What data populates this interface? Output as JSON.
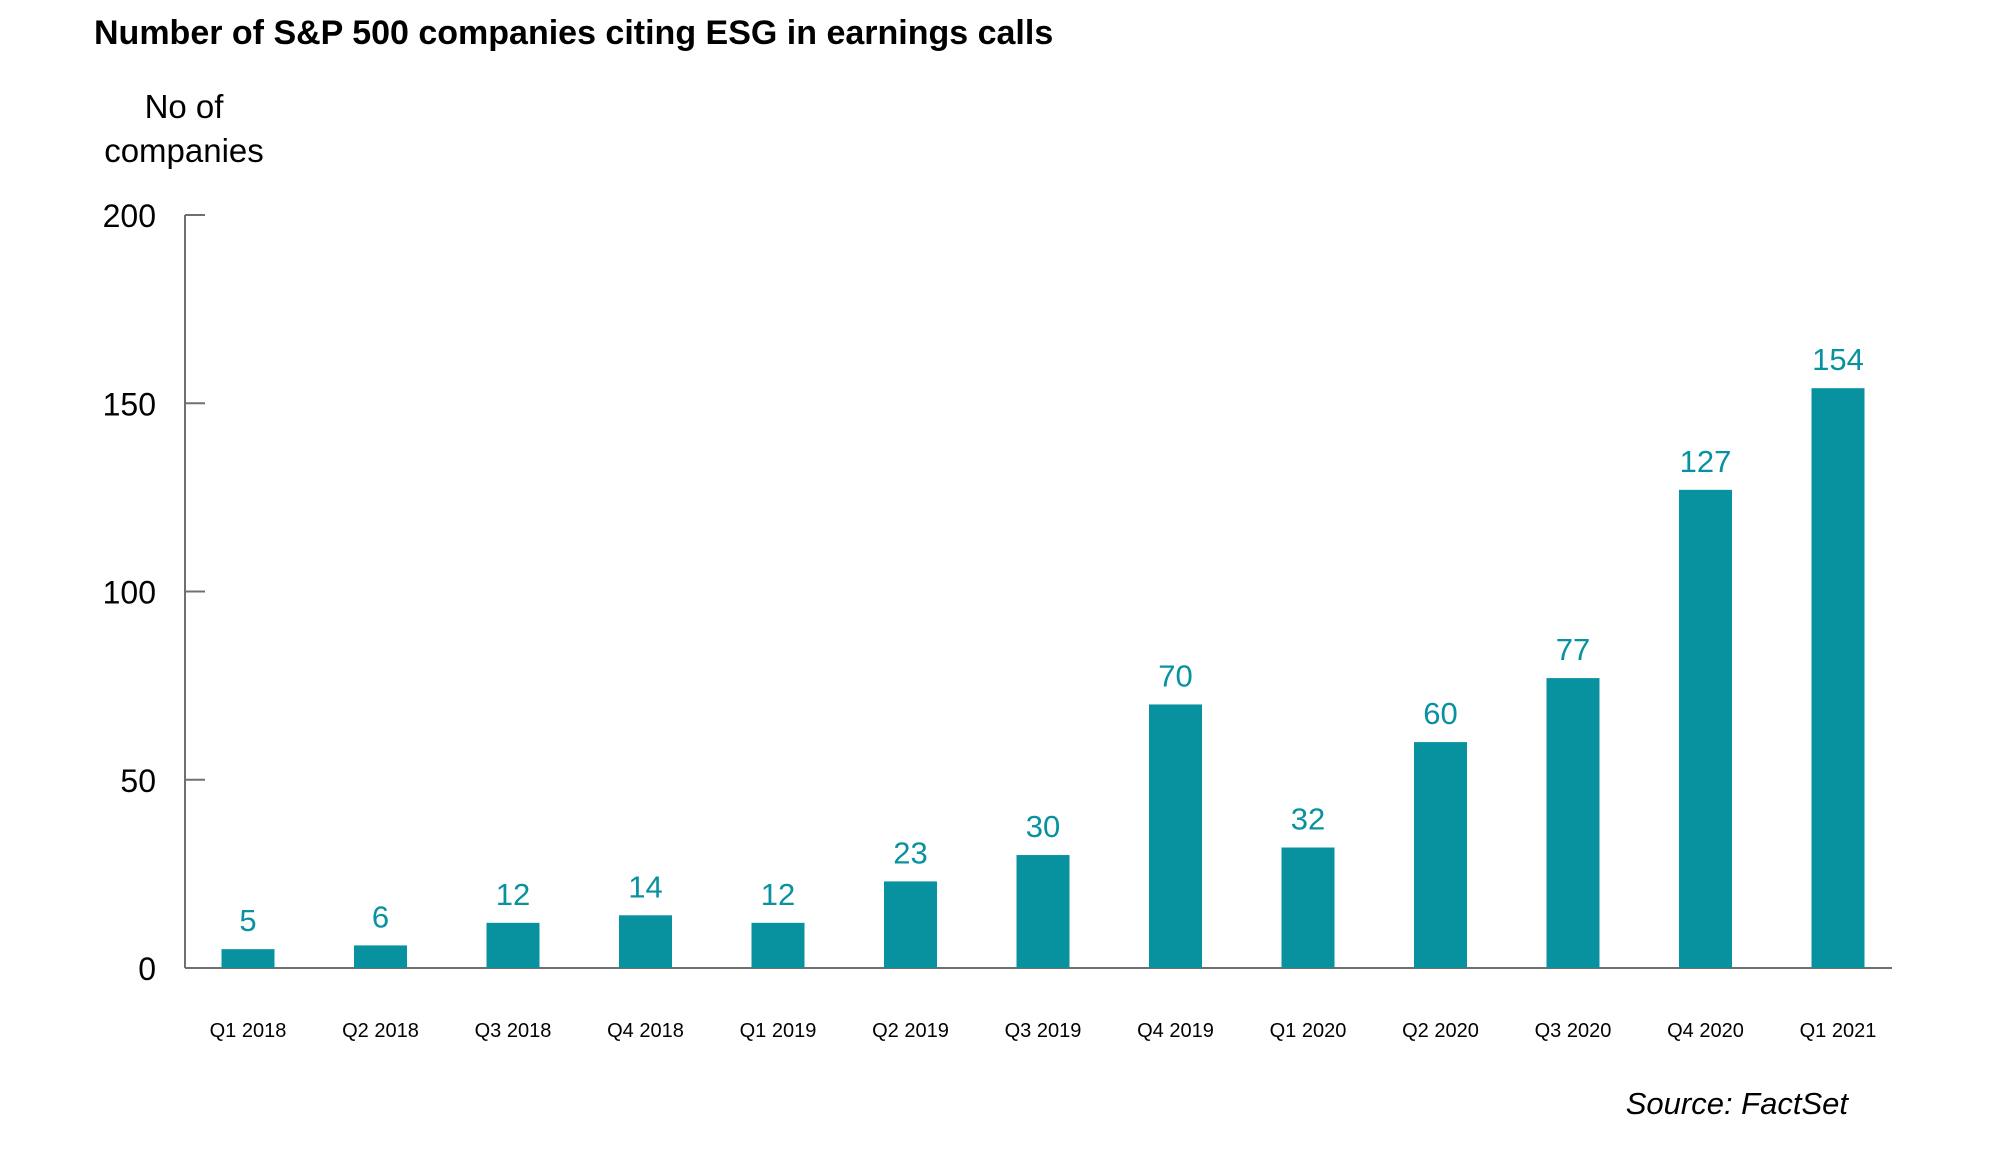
{
  "title": "Number of S&P 500 companies citing ESG in earnings calls",
  "source": "Source: FactSet",
  "colors": {
    "bar": "#0892a0",
    "axis": "#707070",
    "text": "#000000"
  },
  "chart_data": {
    "type": "bar",
    "title": "Number of S&P 500 companies citing ESG in earnings calls",
    "xlabel": "",
    "ylabel": "No of companies",
    "ylim": [
      0,
      200
    ],
    "yticks": [
      0,
      50,
      100,
      150,
      200
    ],
    "grid": false,
    "categories": [
      "Q1 2018",
      "Q2 2018",
      "Q3 2018",
      "Q4 2018",
      "Q1 2019",
      "Q2 2019",
      "Q3 2019",
      "Q4 2019",
      "Q1 2020",
      "Q2 2020",
      "Q3 2020",
      "Q4 2020",
      "Q1 2021"
    ],
    "values": [
      5,
      6,
      12,
      14,
      12,
      23,
      30,
      70,
      32,
      60,
      77,
      127,
      154
    ]
  }
}
